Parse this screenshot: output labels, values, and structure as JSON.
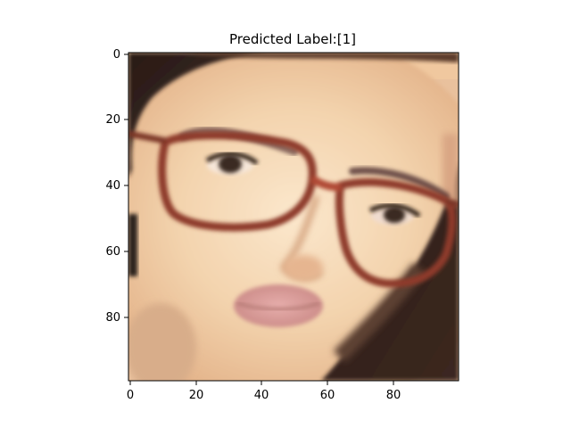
{
  "figure": {
    "title": "Predicted Label:[1]"
  },
  "image": {
    "description_icon": "face-photo-with-glasses",
    "x_range": [
      0,
      99
    ],
    "y_range": [
      0,
      99
    ],
    "x_ticks": [
      "0",
      "20",
      "40",
      "60",
      "80"
    ],
    "y_ticks": [
      "0",
      "20",
      "40",
      "60",
      "80"
    ],
    "colors": {
      "skin_light": "#f6dcbc",
      "skin_mid": "#e9bf98",
      "skin_shadow": "#cf9a74",
      "hair_dark": "#2e1f1a",
      "hair_mid": "#4a3229",
      "glasses_frame": "#8e3b2c",
      "lips": "#d99a98",
      "eye_dark": "#3a2a22",
      "background_top": "#f0c89f"
    }
  }
}
